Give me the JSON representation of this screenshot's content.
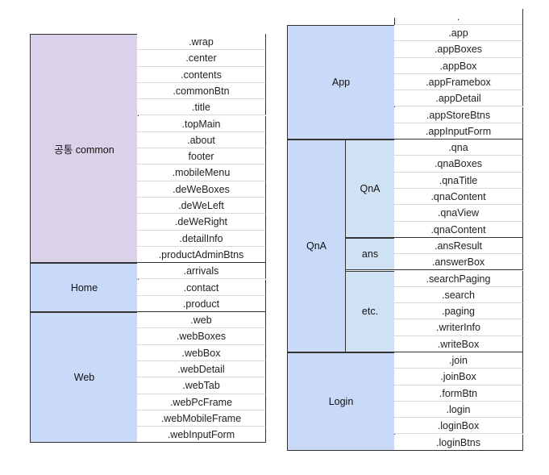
{
  "left_table": {
    "groups": [
      {
        "label": "공통 common",
        "items": [
          ".wrap",
          ".center",
          ".contents",
          ".commonBtn",
          ".title",
          ".topMain",
          ".about",
          "footer",
          ".mobileMenu",
          ".deWeBoxes",
          ".deWeLeft",
          ".deWeRight",
          ".detailInfo",
          ".productAdminBtns"
        ]
      },
      {
        "label": "Home",
        "items": [
          ".arrivals",
          ".contact",
          ".product"
        ]
      },
      {
        "label": "Web",
        "items": [
          ".web",
          ".webBoxes",
          ".webBox",
          ".webDetail",
          ".webTab",
          ".webPcFrame",
          ".webMobileFrame",
          ".webInputForm"
        ]
      }
    ]
  },
  "right_table": {
    "cut_off_top_text": ".",
    "app": {
      "label": "App",
      "items": [
        ".app",
        ".appBoxes",
        ".appBox",
        ".appFramebox",
        ".appDetail",
        ".appStoreBtns",
        ".appInputForm"
      ]
    },
    "qna": {
      "label": "QnA",
      "subgroups": [
        {
          "label": "QnA",
          "items": [
            ".qna",
            ".qnaBoxes",
            ".qnaTitle",
            ".qnaContent",
            ".qnaView",
            ".qnaContent"
          ]
        },
        {
          "label": "ans",
          "items": [
            ".ansResult",
            ".answerBox"
          ]
        },
        {
          "label": "etc.",
          "items": [
            ".searchPaging",
            ".search",
            ".paging",
            ".writerInfo",
            ".writeBox"
          ]
        }
      ]
    },
    "login": {
      "label": "Login",
      "items": [
        ".join",
        ".joinBox",
        ".formBtn",
        ".login",
        ".loginBox",
        ".loginBtns"
      ]
    }
  }
}
